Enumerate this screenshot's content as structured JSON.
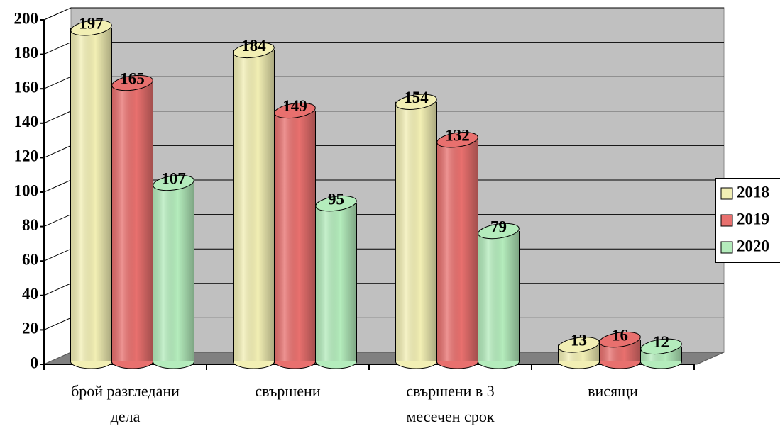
{
  "chart_data": {
    "type": "bar3d",
    "categories": [
      "брой разгледани дела",
      "свършени",
      "свършени в 3 месечен срок",
      "висящи"
    ],
    "series": [
      {
        "name": "2018",
        "color": "#f2efb4",
        "values": [
          197,
          184,
          154,
          13
        ]
      },
      {
        "name": "2019",
        "color": "#e8706e",
        "values": [
          165,
          149,
          132,
          16
        ]
      },
      {
        "name": "2020",
        "color": "#b4ecbc",
        "values": [
          107,
          95,
          79,
          12
        ]
      }
    ],
    "ylim": [
      0,
      200
    ],
    "yticks": [
      0,
      20,
      40,
      60,
      80,
      100,
      120,
      140,
      160,
      180,
      200
    ],
    "grid": true,
    "legend": "right"
  }
}
